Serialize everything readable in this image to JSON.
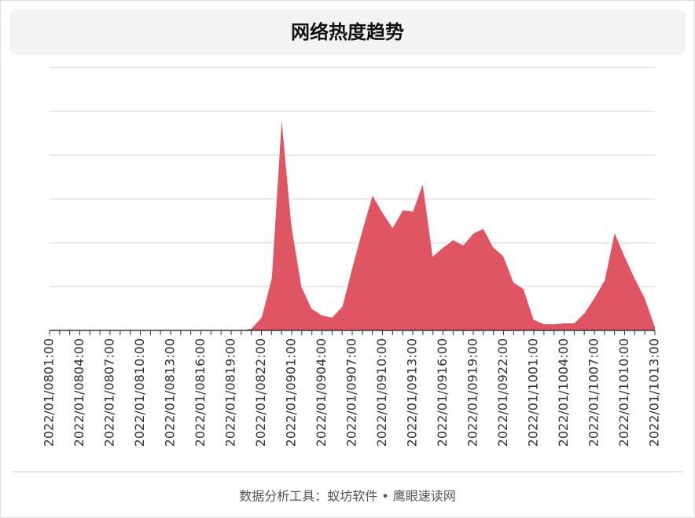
{
  "chart_data": {
    "type": "area",
    "title": "网络热度趋势",
    "categories": [
      "2022/01/0801:00",
      null,
      null,
      "2022/01/0804:00",
      null,
      null,
      "2022/01/0807:00",
      null,
      null,
      "2022/01/0810:00",
      null,
      null,
      "2022/01/0813:00",
      null,
      null,
      "2022/01/0816:00",
      null,
      null,
      "2022/01/0819:00",
      null,
      null,
      "2022/01/0822:00",
      null,
      null,
      "2022/01/0901:00",
      null,
      null,
      "2022/01/0904:00",
      null,
      null,
      "2022/01/0907:00",
      null,
      null,
      "2022/01/0910:00",
      null,
      null,
      "2022/01/0913:00",
      null,
      null,
      "2022/01/0916:00",
      null,
      null,
      "2022/01/0919:00",
      null,
      null,
      "2022/01/0922:00",
      null,
      null,
      "2022/01/1001:00",
      null,
      null,
      "2022/01/1004:00",
      null,
      null,
      "2022/01/1007:00",
      null,
      null,
      "2022/01/1010:00",
      null,
      null,
      "2022/01/1013:00"
    ],
    "values": [
      0,
      0,
      0,
      0,
      0,
      0,
      0,
      0,
      0,
      0,
      0,
      0,
      0,
      0,
      0,
      0,
      0,
      0,
      0,
      0,
      0.05,
      0.3,
      1.2,
      4.9,
      2.4,
      1.0,
      0.5,
      0.35,
      0.3,
      0.55,
      1.45,
      2.3,
      3.1,
      2.7,
      2.35,
      2.75,
      2.72,
      3.37,
      1.7,
      1.9,
      2.07,
      1.95,
      2.22,
      2.33,
      1.9,
      1.7,
      1.1,
      0.95,
      0.25,
      0.15,
      0.15,
      0.17,
      0.17,
      0.4,
      0.75,
      1.15,
      2.25,
      1.7,
      1.2,
      0.75,
      0.1
    ],
    "color": "#e05563",
    "ylim": [
      0,
      6
    ],
    "yticks": [
      0,
      1,
      2,
      3,
      4,
      5,
      6
    ],
    "grid": true
  },
  "footer": "数据分析工具：蚁坊软件 • 鹰眼速读网"
}
